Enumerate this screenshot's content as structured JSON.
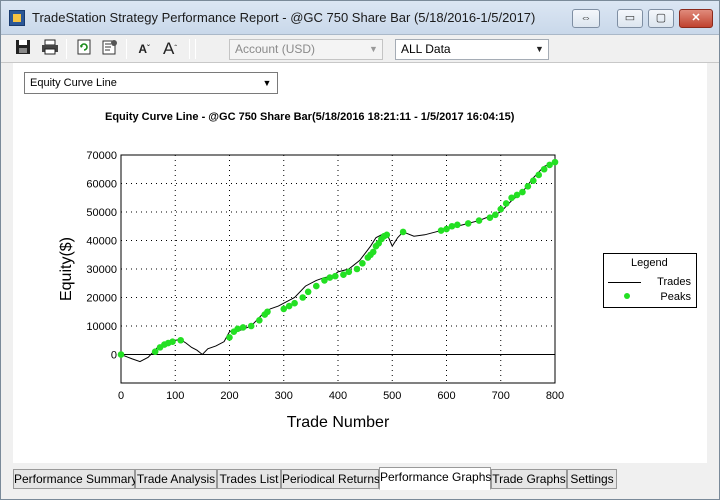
{
  "window": {
    "title": "TradeStation Strategy Performance Report - @GC 750 Share Bar (5/18/2016-1/5/2017)",
    "restore_glyph": "⇔",
    "minimize_glyph": "▭",
    "maximize_glyph": "▢",
    "close_glyph": "✕"
  },
  "toolbar": {
    "icons": [
      "save-icon",
      "print-icon",
      "refresh-icon",
      "properties-icon",
      "decrease-font-icon",
      "increase-font-icon"
    ],
    "account_combo": "Account (USD)",
    "data_combo": "ALL Data"
  },
  "chart_selector": {
    "value": "Equity Curve Line"
  },
  "chart_data": {
    "type": "line",
    "title": "Equity Curve Line - @GC 750 Share Bar(5/18/2016 18:21:11 - 1/5/2017 16:04:15)",
    "xlabel": "Trade Number",
    "ylabel": "Equity($)",
    "xlim": [
      0,
      800
    ],
    "ylim": [
      -10000,
      70000
    ],
    "x_ticks": [
      0,
      100,
      200,
      300,
      400,
      500,
      600,
      700,
      800
    ],
    "y_ticks": [
      0,
      10000,
      20000,
      30000,
      40000,
      50000,
      60000,
      70000
    ],
    "grid": true,
    "legend_title": "Legend",
    "legend_placement": "right",
    "series": [
      {
        "name": "Trades",
        "color": "#000000",
        "x": [
          0,
          20,
          35,
          50,
          60,
          70,
          80,
          90,
          100,
          110,
          120,
          130,
          140,
          150,
          160,
          175,
          190,
          200,
          210,
          220,
          240,
          260,
          275,
          290,
          300,
          320,
          340,
          360,
          375,
          390,
          400,
          420,
          440,
          460,
          470,
          480,
          490,
          500,
          510,
          520,
          540,
          560,
          580,
          600,
          620,
          640,
          660,
          680,
          700,
          720,
          740,
          760,
          780,
          800
        ],
        "y": [
          0,
          -1500,
          -2500,
          -1000,
          1000,
          3000,
          3500,
          4000,
          5000,
          5200,
          4000,
          2500,
          1500,
          0,
          2000,
          3000,
          4500,
          8000,
          9000,
          8500,
          10000,
          14000,
          16000,
          17000,
          18000,
          20000,
          24000,
          26000,
          27000,
          27500,
          29000,
          30000,
          33000,
          38000,
          41000,
          42000,
          42500,
          38000,
          41000,
          43000,
          41500,
          42000,
          43000,
          44000,
          45000,
          46000,
          47000,
          48500,
          50000,
          54000,
          57000,
          62000,
          66000,
          67500
        ]
      },
      {
        "name": "Peaks",
        "color": "#23e023",
        "x": [
          0,
          63,
          72,
          80,
          87,
          95,
          110,
          200,
          208,
          215,
          225,
          240,
          255,
          265,
          270,
          300,
          310,
          320,
          335,
          345,
          360,
          375,
          385,
          395,
          410,
          420,
          435,
          445,
          455,
          460,
          465,
          470,
          475,
          480,
          485,
          490,
          520,
          590,
          600,
          610,
          620,
          640,
          660,
          680,
          690,
          700,
          710,
          720,
          730,
          740,
          750,
          760,
          770,
          780,
          790,
          800
        ],
        "y": [
          0,
          1000,
          2500,
          3500,
          4000,
          4500,
          5000,
          6000,
          8000,
          9000,
          9500,
          10000,
          12000,
          14000,
          15000,
          16000,
          17000,
          18000,
          20000,
          22000,
          24000,
          26000,
          27000,
          27500,
          28000,
          29000,
          30000,
          32000,
          34000,
          35000,
          36000,
          38000,
          39000,
          40500,
          41500,
          42000,
          43000,
          43500,
          44000,
          45000,
          45500,
          46000,
          47000,
          48000,
          49000,
          51000,
          53000,
          55000,
          56000,
          57000,
          59000,
          61000,
          63000,
          65000,
          66500,
          67500
        ]
      }
    ]
  },
  "tabs": [
    {
      "label": "Performance Summary",
      "active": false
    },
    {
      "label": "Trade Analysis",
      "active": false
    },
    {
      "label": "Trades List",
      "active": false
    },
    {
      "label": "Periodical Returns",
      "active": false
    },
    {
      "label": "Performance Graphs",
      "active": true
    },
    {
      "label": "Trade Graphs",
      "active": false
    },
    {
      "label": "Settings",
      "active": false
    }
  ]
}
